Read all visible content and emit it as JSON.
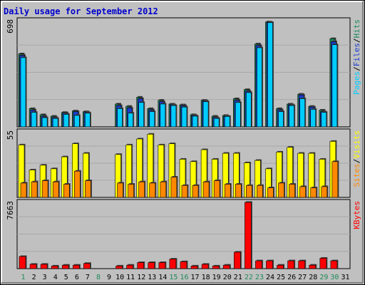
{
  "chart_data": [
    {
      "type": "bar",
      "title": "Daily usage for September 2012",
      "categories": [
        "1",
        "2",
        "3",
        "4",
        "5",
        "6",
        "7",
        "8",
        "9",
        "10",
        "11",
        "12",
        "13",
        "14",
        "15",
        "16",
        "17",
        "18",
        "19",
        "20",
        "21",
        "22",
        "23",
        "24",
        "25",
        "26",
        "27",
        "28",
        "29",
        "30",
        "31"
      ],
      "weekend_days": [
        "1",
        "8",
        "15",
        "16",
        "22",
        "23",
        "29",
        "30"
      ],
      "ymax_label": "698",
      "ylim": [
        0,
        698
      ],
      "legend": [
        "Pages",
        "/",
        "Files",
        "/",
        "Hits"
      ],
      "series": [
        {
          "name": "Hits",
          "color": "#1e8a5a",
          "values": [
            480,
            120,
            80,
            70,
            95,
            105,
            100,
            0,
            0,
            150,
            135,
            195,
            120,
            175,
            150,
            145,
            80,
            175,
            70,
            75,
            185,
            245,
            545,
            690,
            120,
            150,
            215,
            135,
            110,
            580,
            0
          ]
        },
        {
          "name": "Files",
          "color": "#1a3ccc",
          "values": [
            470,
            110,
            70,
            62,
            90,
            100,
            95,
            0,
            0,
            140,
            125,
            185,
            112,
            165,
            145,
            140,
            75,
            170,
            62,
            70,
            175,
            235,
            535,
            688,
            112,
            145,
            210,
            130,
            100,
            560,
            0
          ]
        },
        {
          "name": "Pages",
          "color": "#00ccff",
          "values": [
            455,
            95,
            60,
            55,
            82,
            75,
            90,
            0,
            0,
            120,
            90,
            160,
            100,
            150,
            140,
            130,
            70,
            165,
            55,
            68,
            160,
            225,
            520,
            685,
            100,
            140,
            185,
            115,
            95,
            540,
            0
          ]
        }
      ]
    },
    {
      "type": "bar",
      "ymax_label": "55",
      "ylim": [
        0,
        55
      ],
      "legend": [
        "Sites",
        "/",
        "Visits"
      ],
      "series": [
        {
          "name": "Visits",
          "color": "#ffff00",
          "values": [
            44,
            23,
            27,
            24,
            34,
            45,
            37,
            0,
            0,
            36,
            44,
            49,
            53,
            44,
            45,
            32,
            30,
            40,
            32,
            37,
            37,
            29,
            31,
            24,
            38,
            42,
            37,
            37,
            32,
            47,
            0
          ]
        },
        {
          "name": "Sites",
          "color": "#ff8800",
          "values": [
            12,
            13,
            14,
            13,
            11,
            22,
            14,
            0,
            0,
            12,
            11,
            13,
            12,
            13,
            17,
            10,
            10,
            13,
            14,
            11,
            11,
            10,
            10,
            8,
            12,
            11,
            9,
            8,
            9,
            30,
            0
          ]
        }
      ]
    },
    {
      "type": "bar",
      "ymax_label": "7663",
      "ylim": [
        0,
        7663
      ],
      "legend": [
        "KBytes"
      ],
      "series": [
        {
          "name": "KBytes",
          "color": "#ff0000",
          "values": [
            1400,
            500,
            500,
            300,
            400,
            400,
            600,
            0,
            0,
            300,
            400,
            700,
            700,
            700,
            1100,
            800,
            300,
            500,
            300,
            400,
            1900,
            7663,
            900,
            900,
            400,
            900,
            900,
            400,
            1200,
            900,
            0
          ]
        }
      ]
    }
  ]
}
